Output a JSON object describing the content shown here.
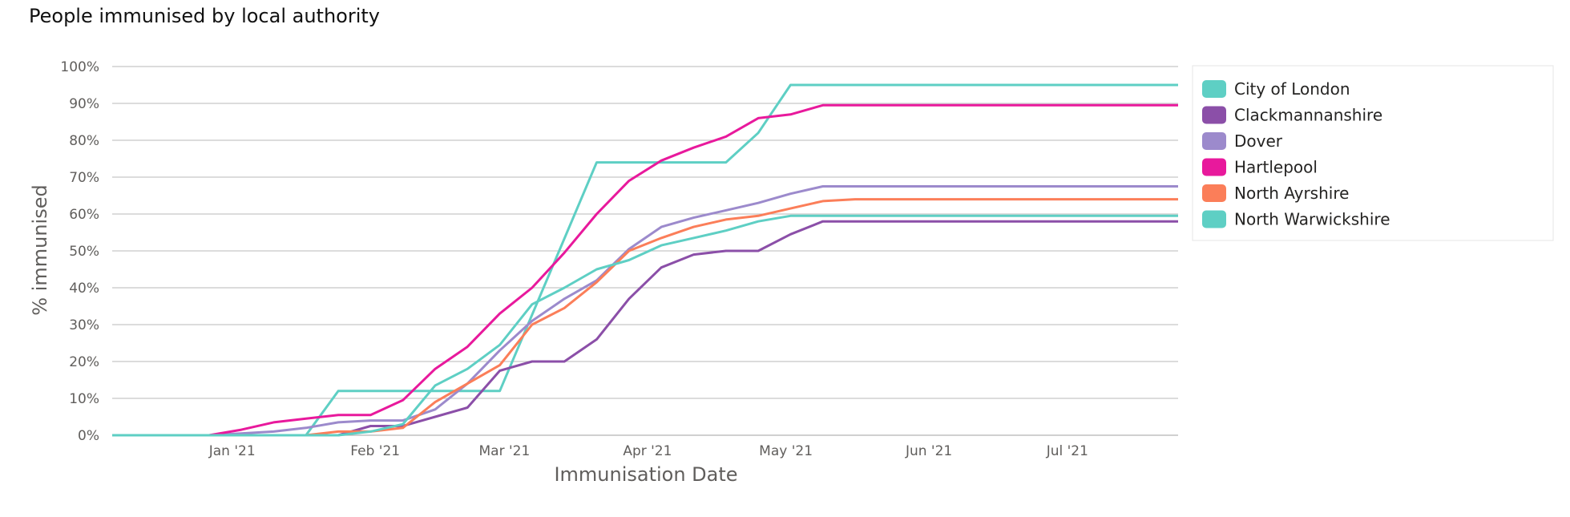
{
  "chart_data": {
    "type": "line",
    "title": "People immunised by local authority",
    "xlabel": "Immunisation Date",
    "ylabel": "% immunised",
    "ylim": [
      0,
      100
    ],
    "y_ticks": [
      "0%",
      "10%",
      "20%",
      "30%",
      "40%",
      "50%",
      "60%",
      "70%",
      "80%",
      "90%",
      "100%"
    ],
    "x_ticks": [
      "Jan '21",
      "Feb '21",
      "Mar '21",
      "Apr '21",
      "May '21",
      "Jun '21",
      "Jul '21"
    ],
    "x_tick_dates": [
      "2021-01-01",
      "2021-02-01",
      "2021-03-01",
      "2021-04-01",
      "2021-05-01",
      "2021-06-01",
      "2021-07-01"
    ],
    "xlim": [
      "2020-12-06",
      "2021-07-25"
    ],
    "grid": true,
    "legend_position": "right",
    "series": [
      {
        "name": "City of London",
        "color": "#5ECFC4",
        "points": [
          [
            "2020-12-06",
            0
          ],
          [
            "2021-01-17",
            0
          ],
          [
            "2021-01-24",
            12
          ],
          [
            "2021-02-28",
            12
          ],
          [
            "2021-03-21",
            74
          ],
          [
            "2021-04-18",
            74
          ],
          [
            "2021-04-25",
            82
          ],
          [
            "2021-05-02",
            95
          ],
          [
            "2021-07-25",
            95
          ]
        ]
      },
      {
        "name": "Clackmannanshire",
        "color": "#8B4FA8",
        "points": [
          [
            "2020-12-06",
            0
          ],
          [
            "2021-01-24",
            0
          ],
          [
            "2021-01-31",
            2.5
          ],
          [
            "2021-02-07",
            2.5
          ],
          [
            "2021-02-14",
            5
          ],
          [
            "2021-02-21",
            7.5
          ],
          [
            "2021-02-28",
            17.5
          ],
          [
            "2021-03-07",
            20
          ],
          [
            "2021-03-14",
            20
          ],
          [
            "2021-03-21",
            26
          ],
          [
            "2021-03-28",
            37
          ],
          [
            "2021-04-04",
            45.5
          ],
          [
            "2021-04-11",
            49
          ],
          [
            "2021-04-18",
            50
          ],
          [
            "2021-04-25",
            50
          ],
          [
            "2021-05-02",
            54.5
          ],
          [
            "2021-05-09",
            58
          ],
          [
            "2021-07-25",
            58
          ]
        ]
      },
      {
        "name": "Dover",
        "color": "#9C8ACC",
        "points": [
          [
            "2020-12-06",
            0
          ],
          [
            "2020-12-27",
            0
          ],
          [
            "2021-01-03",
            0.5
          ],
          [
            "2021-01-10",
            1
          ],
          [
            "2021-01-17",
            2
          ],
          [
            "2021-01-24",
            3.5
          ],
          [
            "2021-01-31",
            4
          ],
          [
            "2021-02-07",
            4
          ],
          [
            "2021-02-14",
            7
          ],
          [
            "2021-02-21",
            14
          ],
          [
            "2021-02-28",
            23
          ],
          [
            "2021-03-07",
            31
          ],
          [
            "2021-03-14",
            37
          ],
          [
            "2021-03-21",
            42
          ],
          [
            "2021-03-28",
            50.5
          ],
          [
            "2021-04-04",
            56.5
          ],
          [
            "2021-04-11",
            59
          ],
          [
            "2021-04-18",
            61
          ],
          [
            "2021-04-25",
            63
          ],
          [
            "2021-05-02",
            65.5
          ],
          [
            "2021-05-09",
            67.5
          ],
          [
            "2021-07-25",
            67.5
          ]
        ]
      },
      {
        "name": "Hartlepool",
        "color": "#E8199C",
        "points": [
          [
            "2020-12-06",
            0
          ],
          [
            "2020-12-27",
            0
          ],
          [
            "2021-01-03",
            1.5
          ],
          [
            "2021-01-10",
            3.5
          ],
          [
            "2021-01-17",
            4.5
          ],
          [
            "2021-01-24",
            5.5
          ],
          [
            "2021-01-31",
            5.5
          ],
          [
            "2021-02-07",
            9.5
          ],
          [
            "2021-02-14",
            18
          ],
          [
            "2021-02-21",
            24
          ],
          [
            "2021-02-28",
            33
          ],
          [
            "2021-03-07",
            40
          ],
          [
            "2021-03-14",
            49.5
          ],
          [
            "2021-03-21",
            60
          ],
          [
            "2021-03-28",
            69
          ],
          [
            "2021-04-04",
            74.5
          ],
          [
            "2021-04-11",
            78
          ],
          [
            "2021-04-18",
            81
          ],
          [
            "2021-04-25",
            86
          ],
          [
            "2021-05-02",
            87
          ],
          [
            "2021-05-09",
            89.5
          ],
          [
            "2021-07-25",
            89.5
          ]
        ]
      },
      {
        "name": "North Ayrshire",
        "color": "#FB7E59",
        "points": [
          [
            "2020-12-06",
            0
          ],
          [
            "2021-01-17",
            0
          ],
          [
            "2021-01-24",
            1
          ],
          [
            "2021-01-31",
            1
          ],
          [
            "2021-02-07",
            2
          ],
          [
            "2021-02-14",
            9
          ],
          [
            "2021-02-21",
            14
          ],
          [
            "2021-02-28",
            19
          ],
          [
            "2021-03-07",
            30
          ],
          [
            "2021-03-14",
            34.5
          ],
          [
            "2021-03-21",
            41.5
          ],
          [
            "2021-03-28",
            50
          ],
          [
            "2021-04-04",
            53.5
          ],
          [
            "2021-04-11",
            56.5
          ],
          [
            "2021-04-18",
            58.5
          ],
          [
            "2021-04-25",
            59.5
          ],
          [
            "2021-05-02",
            61.5
          ],
          [
            "2021-05-09",
            63.5
          ],
          [
            "2021-05-16",
            64
          ],
          [
            "2021-07-25",
            64
          ]
        ]
      },
      {
        "name": "North Warwickshire",
        "color": "#5ECFC4",
        "points": [
          [
            "2020-12-06",
            0
          ],
          [
            "2021-01-24",
            0
          ],
          [
            "2021-01-31",
            1
          ],
          [
            "2021-02-07",
            3
          ],
          [
            "2021-02-14",
            13.5
          ],
          [
            "2021-02-21",
            18
          ],
          [
            "2021-02-28",
            24.5
          ],
          [
            "2021-03-07",
            35.5
          ],
          [
            "2021-03-14",
            40
          ],
          [
            "2021-03-21",
            45
          ],
          [
            "2021-03-28",
            47.5
          ],
          [
            "2021-04-04",
            51.5
          ],
          [
            "2021-04-11",
            53.5
          ],
          [
            "2021-04-18",
            55.5
          ],
          [
            "2021-04-25",
            58
          ],
          [
            "2021-05-02",
            59.5
          ],
          [
            "2021-05-09",
            59.5
          ],
          [
            "2021-07-25",
            59.5
          ]
        ]
      }
    ]
  }
}
